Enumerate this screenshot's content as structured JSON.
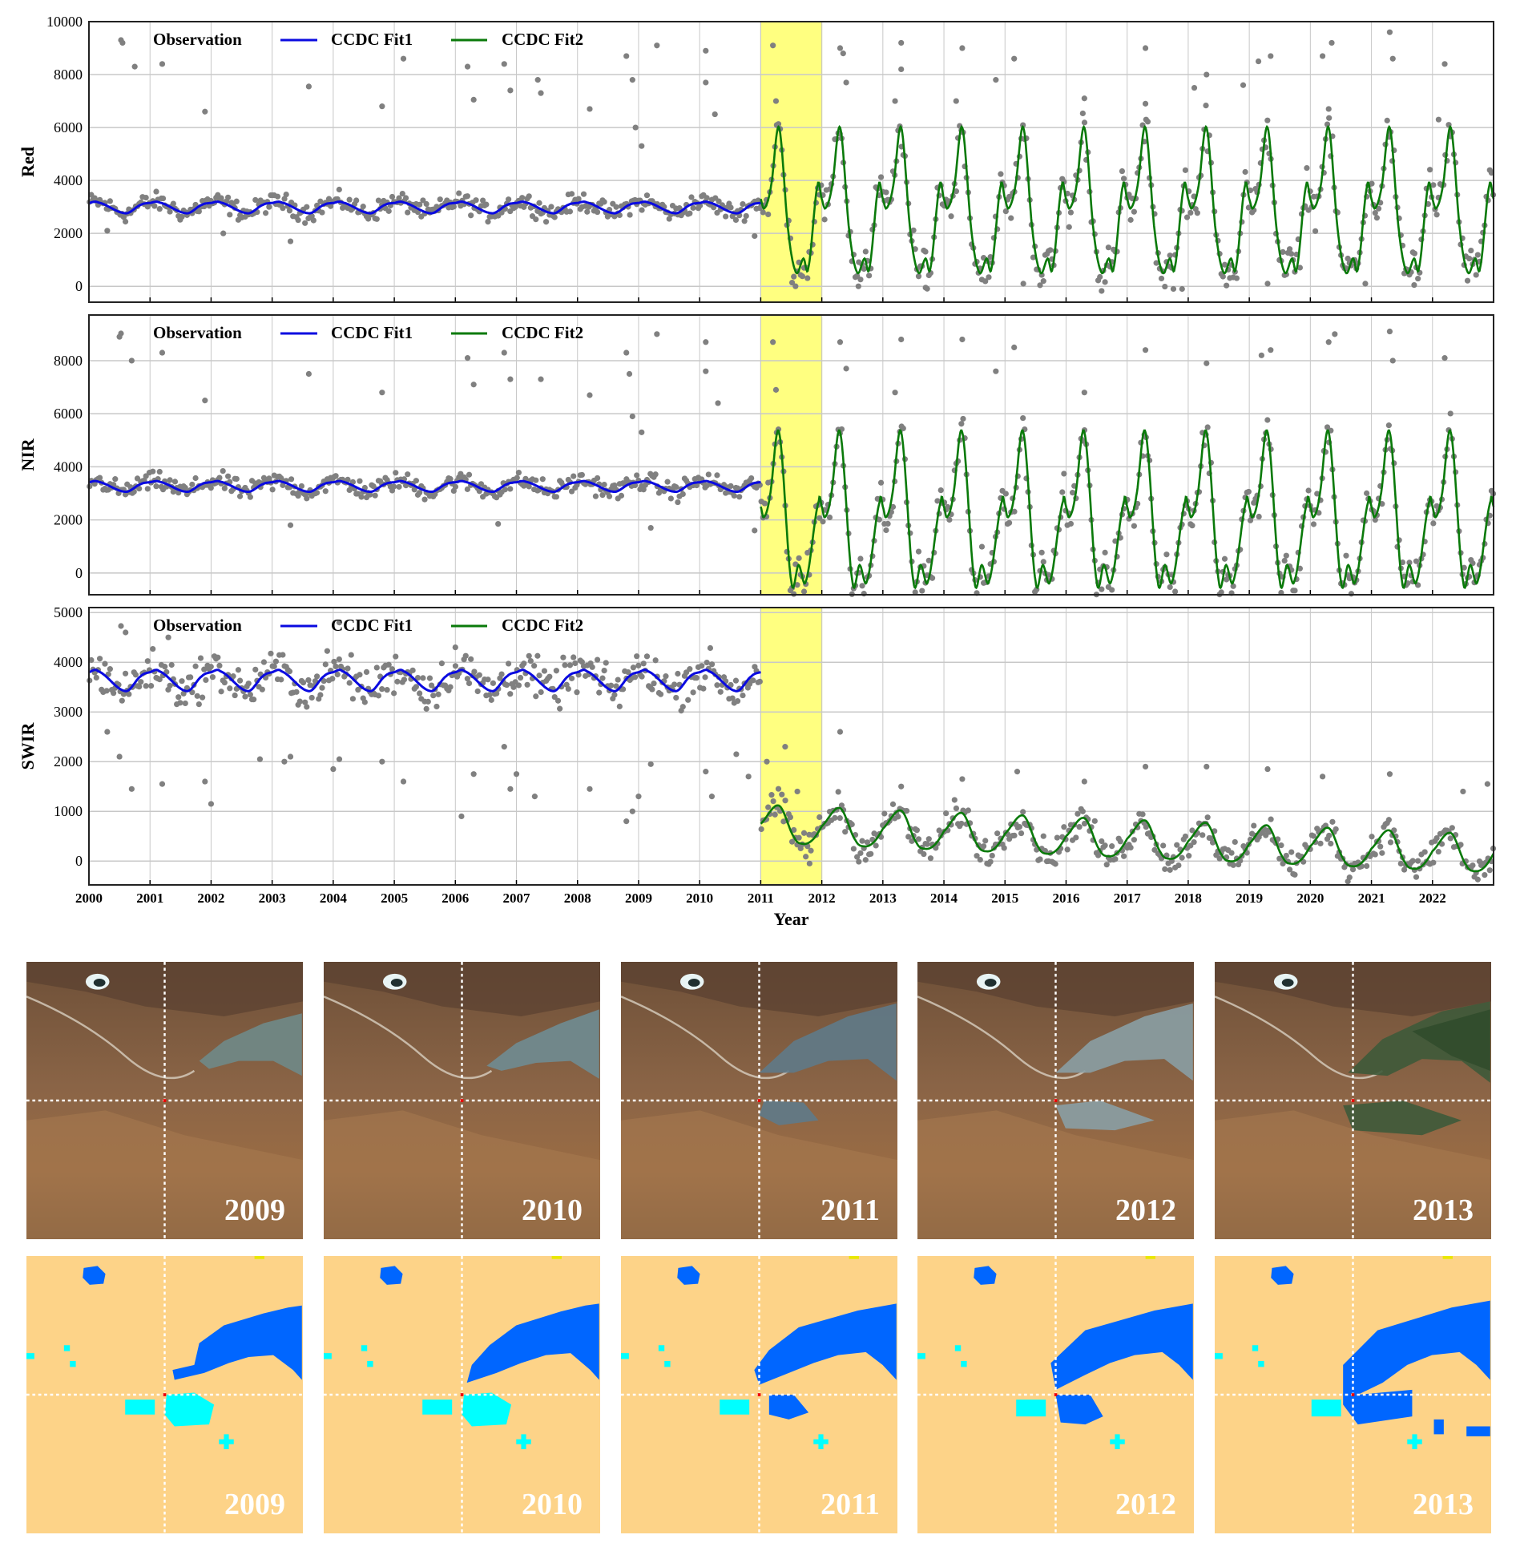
{
  "chart_data": {
    "type": "scatter",
    "xlabel": "Year",
    "xlim": [
      2000,
      2023
    ],
    "xticks": [
      "2000",
      "2001",
      "2002",
      "2003",
      "2004",
      "2005",
      "2006",
      "2007",
      "2008",
      "2009",
      "2010",
      "2011",
      "2012",
      "2013",
      "2014",
      "2015",
      "2016",
      "2017",
      "2018",
      "2019",
      "2020",
      "2021",
      "2022"
    ],
    "highlight_period": [
      2011,
      2012
    ],
    "highlight_color": "#ffff80",
    "grid": true,
    "legend": {
      "placement": "top-left",
      "entries": [
        "Observation",
        "CCDC Fit1",
        "CCDC Fit2"
      ]
    },
    "colors": {
      "observation": "#808080",
      "fit1": "#0a0ae0",
      "fit2": "#0a7a0a"
    },
    "panels": [
      {
        "ylabel": "Red",
        "ylim": [
          -600,
          10000
        ],
        "yticks": [
          0,
          2000,
          4000,
          6000,
          8000,
          10000
        ],
        "fit1": {
          "range": [
            2000,
            2011
          ],
          "seasonal_template": [
            [
              0,
              3150
            ],
            [
              0.15,
              3170
            ],
            [
              0.6,
              2760
            ],
            [
              0.85,
              3080
            ],
            [
              1,
              3150
            ]
          ],
          "trend_per_year": 0,
          "obs_spread": 320
        },
        "fit2": {
          "range": [
            2011,
            2023
          ],
          "seasonal_template": [
            [
              0,
              3300
            ],
            [
              0.06,
              2950
            ],
            [
              0.17,
              3800
            ],
            [
              0.3,
              6000
            ],
            [
              0.45,
              2100
            ],
            [
              0.58,
              520
            ],
            [
              0.7,
              1050
            ],
            [
              0.78,
              700
            ],
            [
              0.93,
              3800
            ],
            [
              1,
              3300
            ]
          ],
          "trend_per_year": 0,
          "obs_spread": 700
        },
        "observations": [
          [
            2000.55,
            9200
          ],
          [
            2000.75,
            8300
          ],
          [
            2001.2,
            8400
          ],
          [
            2001.9,
            6600
          ],
          [
            2003.6,
            7550
          ],
          [
            2004.8,
            6800
          ],
          [
            2005.15,
            8600
          ],
          [
            2006.2,
            8300
          ],
          [
            2006.3,
            7050
          ],
          [
            2006.8,
            8400
          ],
          [
            2006.9,
            7400
          ],
          [
            2007.35,
            7800
          ],
          [
            2007.4,
            7300
          ],
          [
            2008.2,
            6700
          ],
          [
            2008.8,
            8700
          ],
          [
            2008.9,
            7800
          ],
          [
            2008.95,
            6000
          ],
          [
            2009.05,
            5300
          ],
          [
            2009.3,
            9100
          ],
          [
            2010.1,
            8900
          ],
          [
            2010.1,
            7700
          ],
          [
            2010.25,
            6500
          ],
          [
            2011.2,
            9100
          ],
          [
            2011.25,
            7000
          ],
          [
            2012.3,
            9000
          ],
          [
            2012.35,
            8800
          ],
          [
            2012.4,
            7700
          ],
          [
            2013.3,
            9200
          ],
          [
            2013.3,
            8200
          ],
          [
            2013.2,
            7000
          ],
          [
            2014.3,
            9000
          ],
          [
            2014.2,
            7000
          ],
          [
            2014.85,
            7800
          ],
          [
            2015.15,
            8600
          ],
          [
            2016.3,
            7100
          ],
          [
            2017.3,
            9000
          ],
          [
            2017.3,
            6900
          ],
          [
            2018.1,
            7500
          ],
          [
            2018.3,
            8000
          ],
          [
            2018.9,
            7600
          ],
          [
            2019.15,
            8500
          ],
          [
            2019.35,
            8700
          ],
          [
            2020.2,
            8700
          ],
          [
            2020.35,
            9200
          ],
          [
            2020.3,
            6700
          ],
          [
            2021.3,
            9600
          ],
          [
            2021.35,
            8600
          ],
          [
            2022.2,
            8400
          ],
          [
            2022.1,
            6300
          ],
          [
            2012.6,
            0
          ],
          [
            2013.7,
            -50
          ],
          [
            2015.3,
            100
          ],
          [
            2017.9,
            -100
          ],
          [
            2019.3,
            100
          ],
          [
            2020.9,
            100
          ],
          [
            2021.7,
            50
          ],
          [
            2003.3,
            1700
          ],
          [
            2002.2,
            2000
          ],
          [
            2000.3,
            2100
          ],
          [
            2010.9,
            1900
          ]
        ]
      },
      {
        "ylabel": "NIR",
        "ylim": [
          -820,
          9720
        ],
        "yticks": [
          0,
          2000,
          4000,
          6000,
          8000
        ],
        "fit1": {
          "range": [
            2000,
            2011
          ],
          "seasonal_template": [
            [
              0,
              3420
            ],
            [
              0.15,
              3440
            ],
            [
              0.6,
              3060
            ],
            [
              0.85,
              3350
            ],
            [
              1,
              3420
            ]
          ],
          "trend_per_year": 0,
          "obs_spread": 320
        },
        "fit2": {
          "range": [
            2011,
            2023
          ],
          "seasonal_template": [
            [
              0,
              2500
            ],
            [
              0.05,
              2100
            ],
            [
              0.15,
              2900
            ],
            [
              0.3,
              5300
            ],
            [
              0.5,
              -300
            ],
            [
              0.62,
              300
            ],
            [
              0.74,
              -300
            ],
            [
              0.95,
              2700
            ],
            [
              1,
              2500
            ]
          ],
          "trend_per_year": 0,
          "obs_spread": 650
        },
        "observations": [
          [
            2000.5,
            8900
          ],
          [
            2000.7,
            8000
          ],
          [
            2001.2,
            8300
          ],
          [
            2001.9,
            6500
          ],
          [
            2003.6,
            7500
          ],
          [
            2004.8,
            6800
          ],
          [
            2006.2,
            8100
          ],
          [
            2006.3,
            7100
          ],
          [
            2006.8,
            8300
          ],
          [
            2006.9,
            7300
          ],
          [
            2007.4,
            7300
          ],
          [
            2008.2,
            6700
          ],
          [
            2008.8,
            8300
          ],
          [
            2008.85,
            7500
          ],
          [
            2008.9,
            5900
          ],
          [
            2009.05,
            5300
          ],
          [
            2009.3,
            9000
          ],
          [
            2010.1,
            8700
          ],
          [
            2010.1,
            7600
          ],
          [
            2010.3,
            6400
          ],
          [
            2011.2,
            8700
          ],
          [
            2011.25,
            6900
          ],
          [
            2012.3,
            8700
          ],
          [
            2012.4,
            7700
          ],
          [
            2013.3,
            8800
          ],
          [
            2013.2,
            6800
          ],
          [
            2014.3,
            8800
          ],
          [
            2014.85,
            7600
          ],
          [
            2015.15,
            8500
          ],
          [
            2016.3,
            6800
          ],
          [
            2017.3,
            8400
          ],
          [
            2018.3,
            7900
          ],
          [
            2019.2,
            8200
          ],
          [
            2019.35,
            8400
          ],
          [
            2020.3,
            8700
          ],
          [
            2020.4,
            9000
          ],
          [
            2021.3,
            9100
          ],
          [
            2021.35,
            8000
          ],
          [
            2022.2,
            8100
          ],
          [
            2003.3,
            1800
          ],
          [
            2006.7,
            1850
          ],
          [
            2009.2,
            1700
          ],
          [
            2010.9,
            1600
          ]
        ]
      },
      {
        "ylabel": "SWIR",
        "ylim": [
          -480,
          5100
        ],
        "yticks": [
          0,
          1000,
          2000,
          3000,
          4000,
          5000
        ],
        "fit1": {
          "range": [
            2000,
            2011
          ],
          "seasonal_template": [
            [
              0,
              3800
            ],
            [
              0.15,
              3820
            ],
            [
              0.6,
              3420
            ],
            [
              0.85,
              3720
            ],
            [
              1,
              3800
            ]
          ],
          "trend_per_year": 0,
          "obs_spread": 380
        },
        "fit2": {
          "range": [
            2011,
            2023
          ],
          "seasonal_template": [
            [
              0,
              700
            ],
            [
              0.3,
              1080
            ],
            [
              0.55,
              450
            ],
            [
              0.7,
              330
            ],
            [
              0.85,
              420
            ],
            [
              1,
              700
            ]
          ],
          "trend_per_year": -50,
          "trend_origin": 2012,
          "obs_spread": 280
        },
        "observations": [
          [
            2000.3,
            2600
          ],
          [
            2000.5,
            2100
          ],
          [
            2000.7,
            1450
          ],
          [
            2001.2,
            1550
          ],
          [
            2001.9,
            1600
          ],
          [
            2002.0,
            1150
          ],
          [
            2002.8,
            2050
          ],
          [
            2003.2,
            2000
          ],
          [
            2003.3,
            2100
          ],
          [
            2004.0,
            1850
          ],
          [
            2004.1,
            2050
          ],
          [
            2004.8,
            2000
          ],
          [
            2005.15,
            1600
          ],
          [
            2006.1,
            900
          ],
          [
            2006.3,
            1750
          ],
          [
            2006.8,
            2300
          ],
          [
            2006.9,
            1450
          ],
          [
            2007.0,
            1750
          ],
          [
            2007.3,
            1300
          ],
          [
            2008.2,
            1450
          ],
          [
            2008.8,
            800
          ],
          [
            2008.9,
            1000
          ],
          [
            2009.0,
            1300
          ],
          [
            2009.2,
            1950
          ],
          [
            2010.1,
            1800
          ],
          [
            2010.2,
            1300
          ],
          [
            2010.6,
            2150
          ],
          [
            2010.8,
            1700
          ],
          [
            2011.1,
            2000
          ],
          [
            2011.4,
            2300
          ],
          [
            2011.6,
            1400
          ],
          [
            2011.8,
            -50
          ],
          [
            2012.3,
            2600
          ],
          [
            2013.3,
            1500
          ],
          [
            2014.3,
            1650
          ],
          [
            2015.2,
            1800
          ],
          [
            2016.3,
            1600
          ],
          [
            2017.3,
            1900
          ],
          [
            2018.3,
            1900
          ],
          [
            2019.3,
            1850
          ],
          [
            2020.2,
            1700
          ],
          [
            2021.3,
            1750
          ],
          [
            2022.5,
            1400
          ],
          [
            2022.9,
            1550
          ],
          [
            2000.6,
            4600
          ],
          [
            2001.3,
            4500
          ],
          [
            2004.1,
            4800
          ],
          [
            2006.0,
            4300
          ]
        ]
      }
    ]
  },
  "images": {
    "satellite_years": [
      "2009",
      "2010",
      "2011",
      "2012",
      "2013"
    ],
    "classification_years": [
      "2009",
      "2010",
      "2011",
      "2012",
      "2013"
    ],
    "colors": {
      "land": "#fdd388",
      "water": "#0066ff",
      "new_water": "#00ffff",
      "other": "#e8e800"
    }
  }
}
